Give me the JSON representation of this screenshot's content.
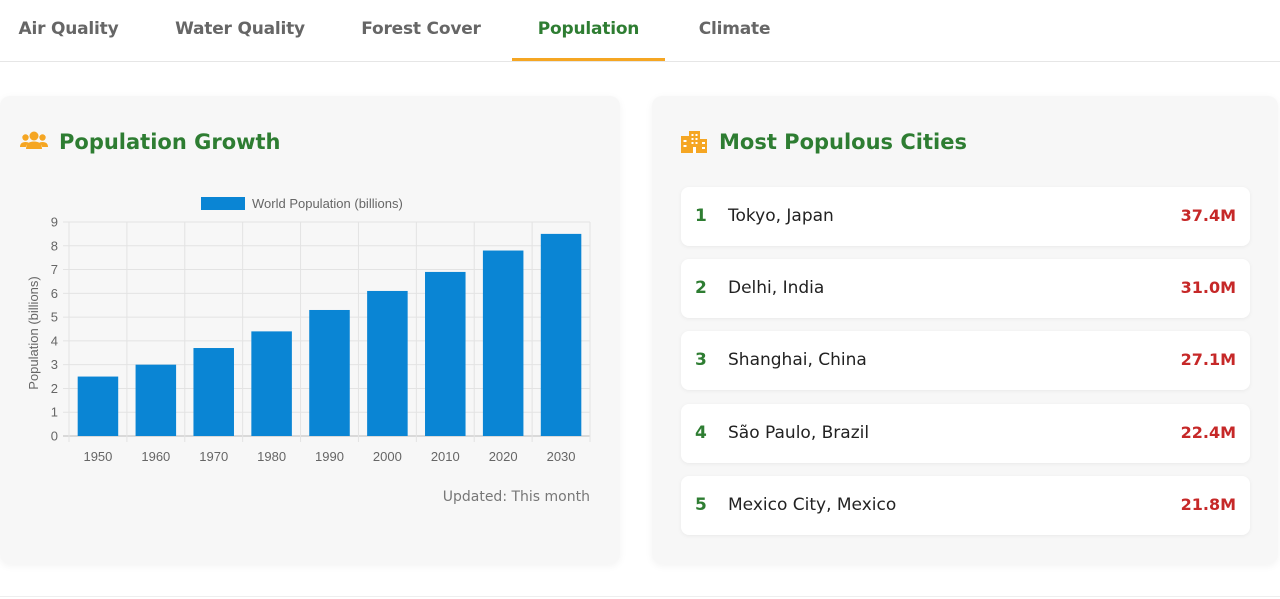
{
  "tabs": [
    {
      "label": "Air Quality"
    },
    {
      "label": "Water Quality"
    },
    {
      "label": "Forest Cover"
    },
    {
      "label": "Population",
      "active": true
    },
    {
      "label": "Climate"
    }
  ],
  "accent_colors": {
    "title": "#2e7d32",
    "icon": "#f5a623",
    "value": "#c62828",
    "bar": "#0a85d4"
  },
  "population_card": {
    "title": "Population Growth",
    "icon": "users-icon",
    "updated": "Updated: This month"
  },
  "cities_card": {
    "title": "Most Populous Cities",
    "icon": "city-icon",
    "items": [
      {
        "rank": "1",
        "name": "Tokyo, Japan",
        "value": "37.4M"
      },
      {
        "rank": "2",
        "name": "Delhi, India",
        "value": "31.0M"
      },
      {
        "rank": "3",
        "name": "Shanghai, China",
        "value": "27.1M"
      },
      {
        "rank": "4",
        "name": "São Paulo, Brazil",
        "value": "22.4M"
      },
      {
        "rank": "5",
        "name": "Mexico City, Mexico",
        "value": "21.8M"
      }
    ]
  },
  "chart_data": {
    "type": "bar",
    "categories": [
      "1950",
      "1960",
      "1970",
      "1980",
      "1990",
      "2000",
      "2010",
      "2020",
      "2030"
    ],
    "series": [
      {
        "name": "World Population (billions)",
        "values": [
          2.5,
          3.0,
          3.7,
          4.4,
          5.3,
          6.1,
          6.9,
          7.8,
          8.5
        ]
      }
    ],
    "ylabel": "Population (billions)",
    "xlabel": "",
    "ylim": [
      0,
      9
    ],
    "yticks": [
      "0",
      "1",
      "2",
      "3",
      "4",
      "5",
      "6",
      "7",
      "8",
      "9"
    ],
    "grid": true,
    "legend": "top"
  }
}
